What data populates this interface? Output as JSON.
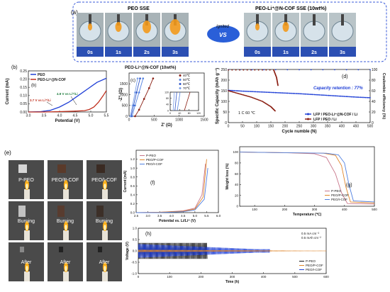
{
  "colors": {
    "blue": "#1f3fd6",
    "red": "#c0301e",
    "green": "#1a7a3a",
    "darkred": "#8a1e12",
    "pink": "#c8768a",
    "orange": "#e0862a",
    "lightblue": "#4f7fe0",
    "black": "#111111"
  },
  "panel_a": {
    "label": "(a)",
    "left_title": "PEO SSE",
    "right_title": "PEO-Li⁺@N-COF SSE (10wt%)",
    "center_top": "Ignited",
    "center_bottom": "VS",
    "times": [
      "0s",
      "1s",
      "2s",
      "3s"
    ]
  },
  "panel_e": {
    "label": "(e)",
    "columns": [
      "P-PEO",
      "PEO/P-COF",
      "PEO/I-COF"
    ],
    "rows": [
      "",
      "Burning",
      "After"
    ]
  },
  "chart_data": [
    {
      "id": "b",
      "type": "line",
      "label": "(b)",
      "xlabel": "Potential (V)",
      "ylabel": "Current (mA)",
      "xlim": [
        3.0,
        5.5
      ],
      "ylim": [
        0.0,
        0.25
      ],
      "xticks": [
        3.0,
        3.5,
        4.0,
        4.5,
        5.0,
        5.5
      ],
      "yticks": [
        0.0,
        0.05,
        0.1,
        0.15,
        0.2,
        0.25
      ],
      "legend": [
        "PEO",
        "PEO-Li⁺@N-COF"
      ],
      "annotations": [
        "3.7 V vs Li⁺/Li",
        "4.9 V vs Li⁺/Li"
      ],
      "series": [
        {
          "name": "PEO",
          "x": [
            3.0,
            3.4,
            3.7,
            4.0,
            4.3,
            4.6,
            4.9,
            5.2,
            5.5
          ],
          "y": [
            0.0,
            0.002,
            0.01,
            0.03,
            0.06,
            0.1,
            0.14,
            0.18,
            0.205
          ]
        },
        {
          "name": "PEO-Li⁺@N-COF",
          "x": [
            3.0,
            3.5,
            4.0,
            4.5,
            4.8,
            4.95,
            5.1,
            5.25,
            5.4,
            5.5
          ],
          "y": [
            0.0,
            0.0,
            0.002,
            0.005,
            0.008,
            0.015,
            0.03,
            0.06,
            0.1,
            0.13
          ]
        }
      ]
    },
    {
      "id": "c",
      "type": "line",
      "label": "(c)",
      "title": "PEO-Li⁺@N-COF (10wt%)",
      "xlabel": "Z' (Ω)",
      "ylabel": "-Z'' (Ω)",
      "xlim": [
        0,
        1500
      ],
      "ylim": [
        0,
        2000
      ],
      "xticks": [
        0,
        500,
        1000,
        1500
      ],
      "yticks": [
        0,
        500,
        1000,
        1500
      ],
      "legend": [
        "40℃",
        "50℃",
        "60℃",
        "70℃"
      ],
      "inset": {
        "xlim": [
          0,
          120
        ],
        "ylim": [
          0,
          120
        ],
        "xticks": [
          0,
          40,
          80,
          120
        ],
        "yticks": [
          0,
          40,
          80,
          120
        ]
      },
      "series": [
        {
          "name": "40℃",
          "x": [
            120,
            200,
            300,
            400,
            480
          ],
          "y": [
            0,
            300,
            800,
            1300,
            1750
          ]
        },
        {
          "name": "50℃",
          "x": [
            60,
            120,
            200,
            280
          ],
          "y": [
            0,
            500,
            1100,
            1750
          ]
        },
        {
          "name": "60℃",
          "x": [
            40,
            90,
            150,
            220
          ],
          "y": [
            0,
            500,
            1100,
            1750
          ]
        },
        {
          "name": "70℃",
          "x": [
            25,
            70,
            120,
            170
          ],
          "y": [
            0,
            500,
            1100,
            1750
          ]
        }
      ]
    },
    {
      "id": "d",
      "type": "line",
      "label": "(d)",
      "xlabel": "Cycle numble (N)",
      "ylabel": "Specific Capacity (mAh g⁻¹)",
      "y2label": "Coulombic efficiency (%)",
      "xlim": [
        0,
        500
      ],
      "ylim": [
        0,
        250
      ],
      "y2lim": [
        0,
        100
      ],
      "xticks": [
        0,
        50,
        100,
        150,
        200,
        250,
        300,
        350,
        400,
        450,
        500
      ],
      "yticks": [
        0,
        50,
        100,
        150,
        200,
        250
      ],
      "y2ticks": [
        0,
        20,
        40,
        60,
        80,
        100
      ],
      "annotations": [
        "Capacity retention : 77%",
        "1 C  60 ℃"
      ],
      "legend": [
        "LFP / PEO-Li⁺@N-COF / Li",
        "LFP / PEO / Li"
      ],
      "series": [
        {
          "name": "LFP / PEO-Li⁺@N-COF / Li",
          "axis": "left",
          "x": [
            0,
            50,
            100,
            150,
            200,
            250,
            300,
            350,
            400,
            450,
            500
          ],
          "y": [
            152,
            148,
            145,
            142,
            139,
            136,
            132,
            128,
            124,
            120,
            117
          ]
        },
        {
          "name": "LFP / PEO / Li",
          "axis": "left",
          "x": [
            0,
            40,
            80,
            120,
            150,
            165
          ],
          "y": [
            150,
            135,
            120,
            100,
            75,
            55
          ]
        },
        {
          "name": "LFP / PEO-Li⁺@N-COF / Li CE",
          "axis": "right",
          "x": [
            0,
            500
          ],
          "y": [
            99.5,
            99.5
          ]
        },
        {
          "name": "LFP / PEO / Li CE",
          "axis": "right",
          "x": [
            0,
            160,
            170,
            175
          ],
          "y": [
            99,
            99,
            85,
            70
          ]
        }
      ]
    },
    {
      "id": "f",
      "type": "line",
      "label": "(f)",
      "xlabel": "Potential vs. Li/Li⁺ (V)",
      "ylabel": "Current (mA)",
      "xlim": [
        2.5,
        6.0
      ],
      "ylim": [
        0,
        1.4
      ],
      "xticks": [
        2.5,
        3.0,
        3.5,
        4.0,
        4.5,
        5.0,
        5.5,
        6.0
      ],
      "yticks": [
        0,
        0.2,
        0.4,
        0.6,
        0.8,
        1.0,
        1.2
      ],
      "legend": [
        "P-PEO",
        "PEO/P-COF",
        "PEO/I-COF"
      ],
      "series": [
        {
          "name": "P-PEO",
          "x": [
            2.5,
            3.5,
            4.5,
            5.0,
            5.3,
            5.45
          ],
          "y": [
            0,
            0.01,
            0.04,
            0.1,
            0.4,
            1.1
          ]
        },
        {
          "name": "PEO/P-COF",
          "x": [
            2.5,
            3.5,
            4.5,
            5.0,
            5.35,
            5.5
          ],
          "y": [
            0,
            0.01,
            0.03,
            0.08,
            0.35,
            1.2
          ]
        },
        {
          "name": "PEO/I-COF",
          "x": [
            2.5,
            3.5,
            4.5,
            5.0,
            5.4,
            5.55
          ],
          "y": [
            0,
            0.0,
            0.02,
            0.06,
            0.3,
            1.0
          ]
        }
      ]
    },
    {
      "id": "g",
      "type": "line",
      "label": "(g)",
      "xlabel": "Temperature (℃)",
      "ylabel": "Weight loss (%)",
      "xlim": [
        50,
        500
      ],
      "ylim": [
        0,
        110
      ],
      "xticks": [
        100,
        200,
        300,
        400,
        500
      ],
      "yticks": [
        0,
        20,
        40,
        60,
        80,
        100
      ],
      "legend": [
        "P-PEO",
        "PEO/P-COF",
        "PEO/I-COF"
      ],
      "series": [
        {
          "name": "P-PEO",
          "x": [
            50,
            200,
            300,
            340,
            370,
            390,
            410,
            500
          ],
          "y": [
            100,
            99,
            97,
            90,
            60,
            25,
            5,
            4
          ]
        },
        {
          "name": "PEO/P-COF",
          "x": [
            50,
            200,
            330,
            370,
            390,
            405,
            420,
            500
          ],
          "y": [
            100,
            99,
            98,
            94,
            75,
            35,
            8,
            6
          ]
        },
        {
          "name": "PEO/I-COF",
          "x": [
            50,
            200,
            340,
            380,
            400,
            415,
            430,
            500
          ],
          "y": [
            100,
            99,
            98,
            95,
            80,
            40,
            10,
            8
          ]
        }
      ]
    },
    {
      "id": "h",
      "type": "line",
      "label": "(h)",
      "xlabel": "Time (h)",
      "ylabel": "Voltage (V)",
      "xlim": [
        0,
        600
      ],
      "ylim": [
        -1.0,
        1.0
      ],
      "xticks": [
        0,
        100,
        200,
        300,
        400,
        500,
        600
      ],
      "yticks": [
        -1.0,
        -0.5,
        0.0,
        0.5,
        1.0
      ],
      "annotations": [
        "0.5 mA cm⁻²",
        "0.5 mAh cm⁻²"
      ],
      "legend": [
        "P-PEO",
        "PEO/P-COF",
        "PEO/I-COF"
      ],
      "series": [
        {
          "name": "P-PEO",
          "x_end": 220,
          "amplitude": 0.35
        },
        {
          "name": "PEO/P-COF",
          "x_end": 600,
          "amplitude": 0.05
        },
        {
          "name": "PEO/I-COF",
          "x_end": 420,
          "amplitude": 0.3
        }
      ]
    }
  ]
}
